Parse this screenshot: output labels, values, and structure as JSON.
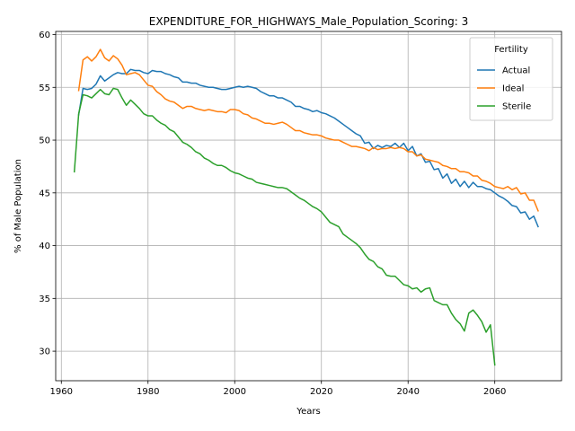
{
  "chart_data": {
    "type": "line",
    "title": "EXPENDITURE_FOR_HIGHWAYS_Male_Population_Scoring: 3",
    "xlabel": "Years",
    "ylabel": "% of Male Population",
    "xlim": [
      1958.7,
      2075.4
    ],
    "ylim": [
      27.2,
      60.3
    ],
    "xticks": [
      "1960",
      "1980",
      "2000",
      "2020",
      "2040",
      "2060"
    ],
    "xtick_values": [
      1960,
      1980,
      2000,
      2020,
      2040,
      2060
    ],
    "yticks": [
      "30",
      "35",
      "40",
      "45",
      "50",
      "55",
      "60"
    ],
    "ytick_values": [
      30,
      35,
      40,
      45,
      50,
      55,
      60
    ],
    "grid": true,
    "legend": {
      "title": "Fertility",
      "placement": "upper-right"
    },
    "series": [
      {
        "name": "Actual",
        "color": "#1f77b4",
        "x": [
          1964,
          1965,
          1966,
          1967,
          1968,
          1969,
          1970,
          1971,
          1972,
          1973,
          1974,
          1975,
          1976,
          1977,
          1978,
          1979,
          1980,
          1981,
          1982,
          1983,
          1984,
          1985,
          1986,
          1987,
          1988,
          1989,
          1990,
          1991,
          1992,
          1993,
          1994,
          1995,
          1996,
          1997,
          1998,
          1999,
          2000,
          2001,
          2002,
          2003,
          2004,
          2005,
          2006,
          2007,
          2008,
          2009,
          2010,
          2011,
          2012,
          2013,
          2014,
          2015,
          2016,
          2017,
          2018,
          2019,
          2020,
          2021,
          2022,
          2023,
          2024,
          2025,
          2026,
          2027,
          2028,
          2029,
          2030,
          2031,
          2032,
          2033,
          2034,
          2035,
          2036,
          2037,
          2038,
          2039,
          2040,
          2041,
          2042,
          2043,
          2044,
          2045,
          2046,
          2047,
          2048,
          2049,
          2050,
          2051,
          2052,
          2053,
          2054,
          2055,
          2056,
          2057,
          2058,
          2059,
          2060,
          2061,
          2062,
          2063,
          2064,
          2065,
          2066,
          2067,
          2068,
          2069,
          2070
        ],
        "y": [
          52.4,
          54.9,
          54.8,
          54.9,
          55.3,
          56.1,
          55.6,
          55.9,
          56.2,
          56.4,
          56.3,
          56.3,
          56.7,
          56.6,
          56.6,
          56.4,
          56.3,
          56.6,
          56.5,
          56.5,
          56.3,
          56.2,
          56.0,
          55.9,
          55.5,
          55.5,
          55.4,
          55.4,
          55.2,
          55.1,
          55.0,
          55.0,
          54.9,
          54.8,
          54.8,
          54.9,
          55.0,
          55.1,
          55.0,
          55.1,
          55.0,
          54.9,
          54.6,
          54.4,
          54.2,
          54.2,
          54.0,
          54.0,
          53.8,
          53.6,
          53.2,
          53.2,
          53.0,
          52.9,
          52.7,
          52.8,
          52.6,
          52.5,
          52.3,
          52.1,
          51.8,
          51.5,
          51.2,
          50.9,
          50.6,
          50.4,
          49.7,
          49.8,
          49.2,
          49.5,
          49.3,
          49.5,
          49.4,
          49.7,
          49.3,
          49.7,
          49.0,
          49.4,
          48.5,
          48.7,
          47.9,
          48.0,
          47.2,
          47.3,
          46.4,
          46.8,
          45.9,
          46.3,
          45.6,
          46.1,
          45.5,
          46.0,
          45.6,
          45.6,
          45.4,
          45.3,
          45.0,
          44.7,
          44.5,
          44.2,
          43.8,
          43.7,
          43.1,
          43.2,
          42.5,
          42.8,
          41.8
        ]
      },
      {
        "name": "Ideal",
        "color": "#ff7f0e",
        "x": [
          1964,
          1965,
          1966,
          1967,
          1968,
          1969,
          1970,
          1971,
          1972,
          1973,
          1974,
          1975,
          1976,
          1977,
          1978,
          1979,
          1980,
          1981,
          1982,
          1983,
          1984,
          1985,
          1986,
          1987,
          1988,
          1989,
          1990,
          1991,
          1992,
          1993,
          1994,
          1995,
          1996,
          1997,
          1998,
          1999,
          2000,
          2001,
          2002,
          2003,
          2004,
          2005,
          2006,
          2007,
          2008,
          2009,
          2010,
          2011,
          2012,
          2013,
          2014,
          2015,
          2016,
          2017,
          2018,
          2019,
          2020,
          2021,
          2022,
          2023,
          2024,
          2025,
          2026,
          2027,
          2028,
          2029,
          2030,
          2031,
          2032,
          2033,
          2034,
          2035,
          2036,
          2037,
          2038,
          2039,
          2040,
          2041,
          2042,
          2043,
          2044,
          2045,
          2046,
          2047,
          2048,
          2049,
          2050,
          2051,
          2052,
          2053,
          2054,
          2055,
          2056,
          2057,
          2058,
          2059,
          2060,
          2061,
          2062,
          2063,
          2064,
          2065,
          2066,
          2067,
          2068,
          2069,
          2070
        ],
        "y": [
          54.7,
          57.6,
          57.9,
          57.5,
          57.9,
          58.6,
          57.8,
          57.5,
          58.0,
          57.7,
          57.1,
          56.2,
          56.3,
          56.4,
          56.2,
          55.7,
          55.2,
          55.1,
          54.6,
          54.3,
          53.9,
          53.7,
          53.6,
          53.3,
          53.0,
          53.2,
          53.2,
          53.0,
          52.9,
          52.8,
          52.9,
          52.8,
          52.7,
          52.7,
          52.6,
          52.9,
          52.9,
          52.8,
          52.5,
          52.4,
          52.1,
          52.0,
          51.8,
          51.6,
          51.6,
          51.5,
          51.6,
          51.7,
          51.5,
          51.2,
          50.9,
          50.9,
          50.7,
          50.6,
          50.5,
          50.5,
          50.4,
          50.2,
          50.1,
          50.0,
          50.0,
          49.8,
          49.6,
          49.4,
          49.4,
          49.3,
          49.2,
          49.0,
          49.3,
          49.1,
          49.2,
          49.2,
          49.3,
          49.2,
          49.3,
          49.2,
          48.9,
          48.9,
          48.5,
          48.6,
          48.2,
          48.1,
          48.0,
          47.9,
          47.6,
          47.5,
          47.3,
          47.3,
          47.0,
          47.0,
          46.9,
          46.6,
          46.6,
          46.2,
          46.1,
          45.9,
          45.6,
          45.5,
          45.4,
          45.6,
          45.3,
          45.5,
          44.9,
          45.0,
          44.3,
          44.3,
          43.3
        ]
      },
      {
        "name": "Sterile",
        "color": "#2ca02c",
        "x": [
          1963,
          1964,
          1965,
          1966,
          1967,
          1968,
          1969,
          1970,
          1971,
          1972,
          1973,
          1974,
          1975,
          1976,
          1977,
          1978,
          1979,
          1980,
          1981,
          1982,
          1983,
          1984,
          1985,
          1986,
          1987,
          1988,
          1989,
          1990,
          1991,
          1992,
          1993,
          1994,
          1995,
          1996,
          1997,
          1998,
          1999,
          2000,
          2001,
          2002,
          2003,
          2004,
          2005,
          2006,
          2007,
          2008,
          2009,
          2010,
          2011,
          2012,
          2013,
          2014,
          2015,
          2016,
          2017,
          2018,
          2019,
          2020,
          2021,
          2022,
          2023,
          2024,
          2025,
          2026,
          2027,
          2028,
          2029,
          2030,
          2031,
          2032,
          2033,
          2034,
          2035,
          2036,
          2037,
          2038,
          2039,
          2040,
          2041,
          2042,
          2043,
          2044,
          2045,
          2046,
          2047,
          2048,
          2049,
          2050,
          2051,
          2052,
          2053,
          2054,
          2055,
          2056,
          2057,
          2058,
          2059,
          2060
        ],
        "y": [
          47.0,
          52.5,
          54.3,
          54.2,
          54.0,
          54.4,
          54.8,
          54.4,
          54.3,
          54.9,
          54.8,
          54.0,
          53.3,
          53.8,
          53.4,
          53.0,
          52.5,
          52.3,
          52.3,
          51.9,
          51.6,
          51.4,
          51.0,
          50.8,
          50.3,
          49.8,
          49.6,
          49.3,
          48.9,
          48.7,
          48.3,
          48.1,
          47.8,
          47.6,
          47.6,
          47.4,
          47.1,
          46.9,
          46.8,
          46.6,
          46.4,
          46.3,
          46.0,
          45.9,
          45.8,
          45.7,
          45.6,
          45.5,
          45.5,
          45.4,
          45.1,
          44.8,
          44.5,
          44.3,
          44.0,
          43.7,
          43.5,
          43.2,
          42.7,
          42.2,
          42.0,
          41.8,
          41.1,
          40.8,
          40.5,
          40.2,
          39.8,
          39.2,
          38.7,
          38.5,
          38.0,
          37.8,
          37.2,
          37.1,
          37.1,
          36.7,
          36.3,
          36.2,
          35.9,
          36.0,
          35.6,
          35.9,
          36.0,
          34.8,
          34.6,
          34.4,
          34.4,
          33.6,
          33.0,
          32.6,
          31.9,
          33.6,
          33.9,
          33.4,
          32.8,
          31.8,
          32.5,
          28.7
        ]
      }
    ]
  }
}
